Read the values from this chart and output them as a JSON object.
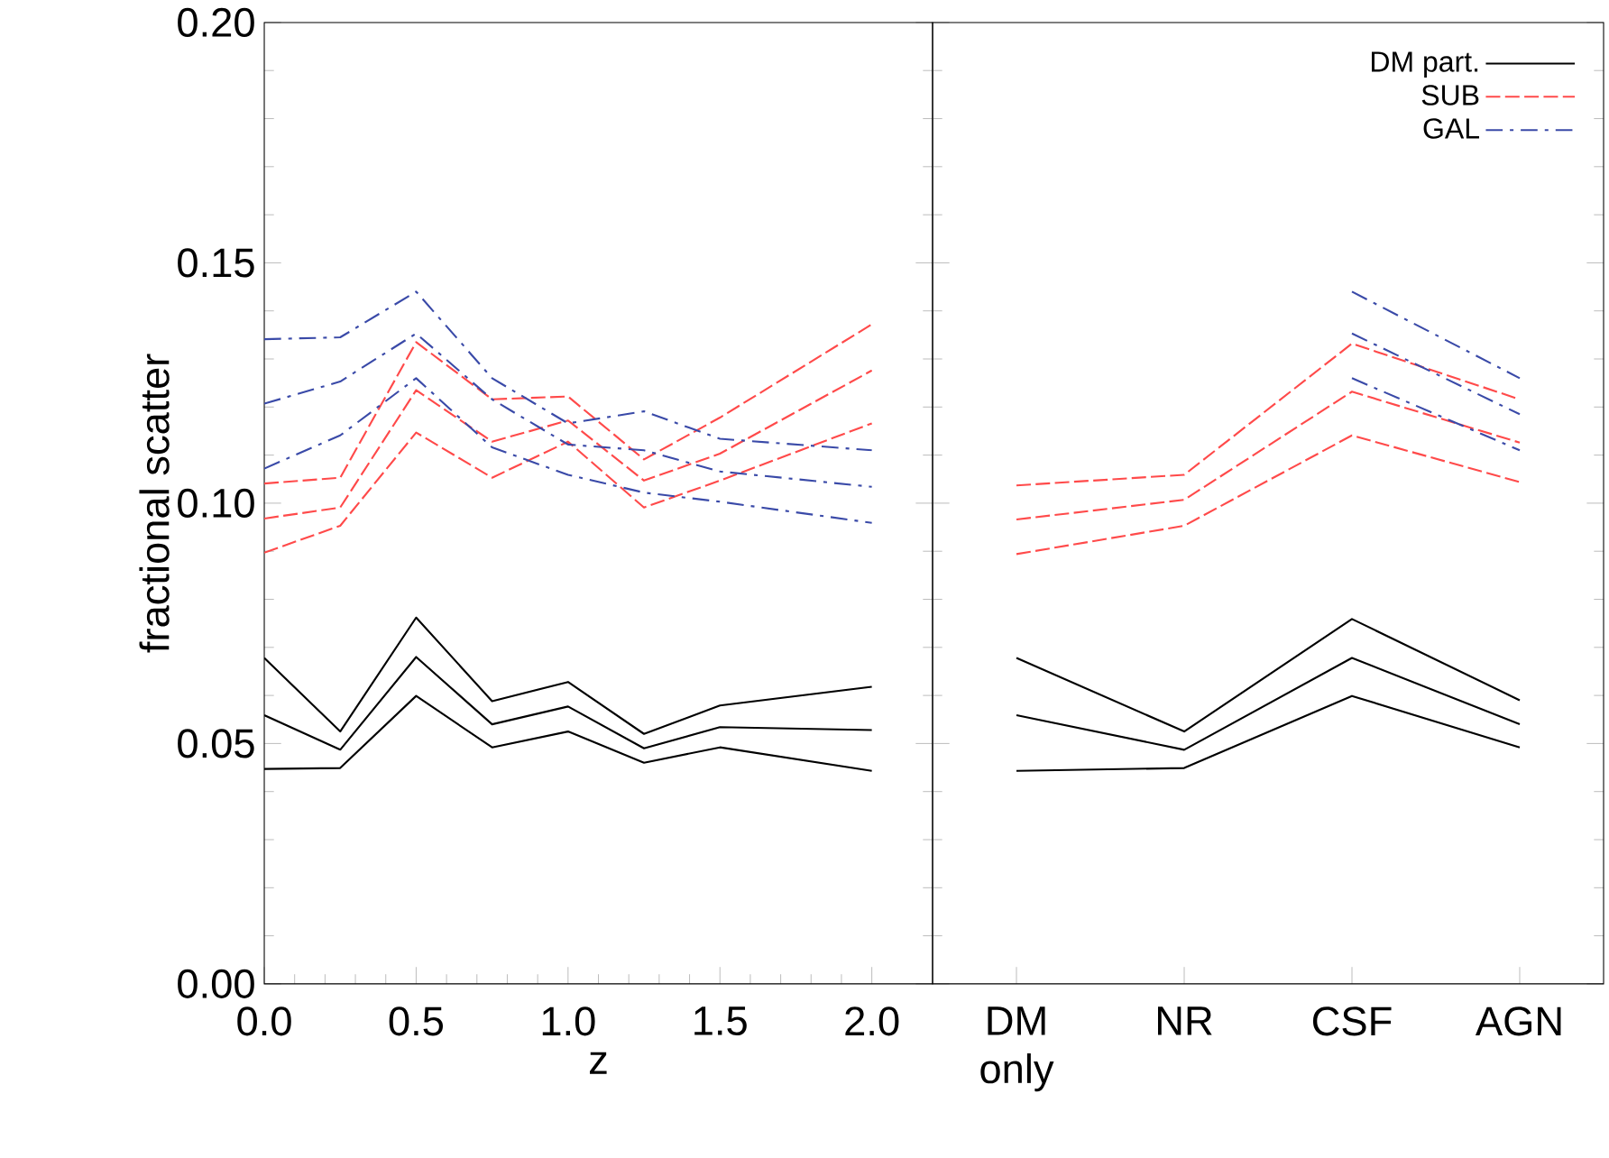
{
  "chart_data": [
    {
      "type": "line",
      "xlabel": "z",
      "ylabel": "fractional scatter",
      "xlim": [
        0,
        2.2
      ],
      "ylim": [
        0,
        0.2
      ],
      "xticks": [
        {
          "value": 0,
          "label": "0.0"
        },
        {
          "value": 0.5,
          "label": "0.5"
        },
        {
          "value": 1,
          "label": "1.0"
        },
        {
          "value": 1.5,
          "label": "1.5"
        },
        {
          "value": 2,
          "label": "2.0"
        }
      ],
      "yticks": [
        {
          "value": 0,
          "label": "0.00"
        },
        {
          "value": 0.05,
          "label": "0.05"
        },
        {
          "value": 0.1,
          "label": "0.10"
        },
        {
          "value": 0.15,
          "label": "0.15"
        },
        {
          "value": 0.2,
          "label": "0.20"
        }
      ],
      "x": [
        0,
        0.25,
        0.5,
        0.75,
        1,
        1.25,
        1.5,
        2
      ],
      "series": [
        {
          "color": "#000000",
          "line_style": "solid",
          "values": [
            0.0678,
            0.0525,
            0.0762,
            0.0588,
            0.0628,
            0.052,
            0.0579,
            0.0618
          ]
        },
        {
          "color": "#000000",
          "line_style": "solid",
          "values": [
            0.0559,
            0.0487,
            0.068,
            0.054,
            0.0577,
            0.049,
            0.0534,
            0.0528
          ]
        },
        {
          "color": "#000000",
          "line_style": "solid",
          "values": [
            0.0447,
            0.0449,
            0.0599,
            0.0492,
            0.0525,
            0.046,
            0.0492,
            0.0443
          ]
        },
        {
          "color": "#ff4a4a",
          "line_style": "dashed",
          "values": [
            0.1041,
            0.1053,
            0.1335,
            0.1216,
            0.1222,
            0.1091,
            0.1178,
            0.1372
          ]
        },
        {
          "color": "#ff4a4a",
          "line_style": "dashed",
          "values": [
            0.0968,
            0.0991,
            0.1235,
            0.1128,
            0.1172,
            0.1047,
            0.1103,
            0.1276
          ]
        },
        {
          "color": "#ff4a4a",
          "line_style": "dashed",
          "values": [
            0.0897,
            0.0953,
            0.1147,
            0.1053,
            0.1128,
            0.0991,
            0.1047,
            0.1166
          ]
        },
        {
          "color": "#3a4aa8",
          "line_style": "dashdot",
          "values": [
            0.1341,
            0.1345,
            0.144,
            0.126,
            0.1166,
            0.1191,
            0.1134,
            0.111
          ]
        },
        {
          "color": "#3a4aa8",
          "line_style": "dashdot",
          "values": [
            0.1207,
            0.1253,
            0.1353,
            0.1216,
            0.1122,
            0.111,
            0.1066,
            0.1034
          ]
        },
        {
          "color": "#3a4aa8",
          "line_style": "dashdot",
          "values": [
            0.1072,
            0.1141,
            0.126,
            0.1116,
            0.1059,
            0.1022,
            0.1003,
            0.0959
          ]
        }
      ]
    },
    {
      "type": "line",
      "categories": [
        "DM only",
        "NR",
        "CSF",
        "AGN"
      ],
      "ylim": [
        0,
        0.2
      ],
      "tick_labels": "x",
      "legend": "top right",
      "yticks": [
        0,
        0.05,
        0.1,
        0.15,
        0.2
      ],
      "series": [
        {
          "name": "DM part.",
          "color": "#000000",
          "line_style": "solid",
          "values": [
            0.0678,
            0.0525,
            0.0759,
            0.059
          ]
        },
        {
          "color": "#000000",
          "line_style": "solid",
          "values": [
            0.0559,
            0.0487,
            0.0678,
            0.054
          ]
        },
        {
          "color": "#000000",
          "line_style": "solid",
          "values": [
            0.0443,
            0.0449,
            0.0599,
            0.0492
          ]
        },
        {
          "name": "SUB",
          "color": "#ff4a4a",
          "line_style": "dashed",
          "values": [
            0.1037,
            0.1059,
            0.1332,
            0.1216
          ]
        },
        {
          "color": "#ff4a4a",
          "line_style": "dashed",
          "values": [
            0.0966,
            0.1007,
            0.1232,
            0.1126
          ]
        },
        {
          "color": "#ff4a4a",
          "line_style": "dashed",
          "values": [
            0.0894,
            0.0953,
            0.1141,
            0.1044
          ]
        },
        {
          "name": "GAL",
          "color": "#3a4aa8",
          "line_style": "dashdot",
          "values": [
            null,
            null,
            0.144,
            0.126
          ]
        },
        {
          "color": "#3a4aa8",
          "line_style": "dashdot",
          "values": [
            null,
            null,
            0.1353,
            0.1185
          ]
        },
        {
          "color": "#3a4aa8",
          "line_style": "dashdot",
          "values": [
            null,
            null,
            0.126,
            0.111
          ]
        }
      ]
    }
  ]
}
